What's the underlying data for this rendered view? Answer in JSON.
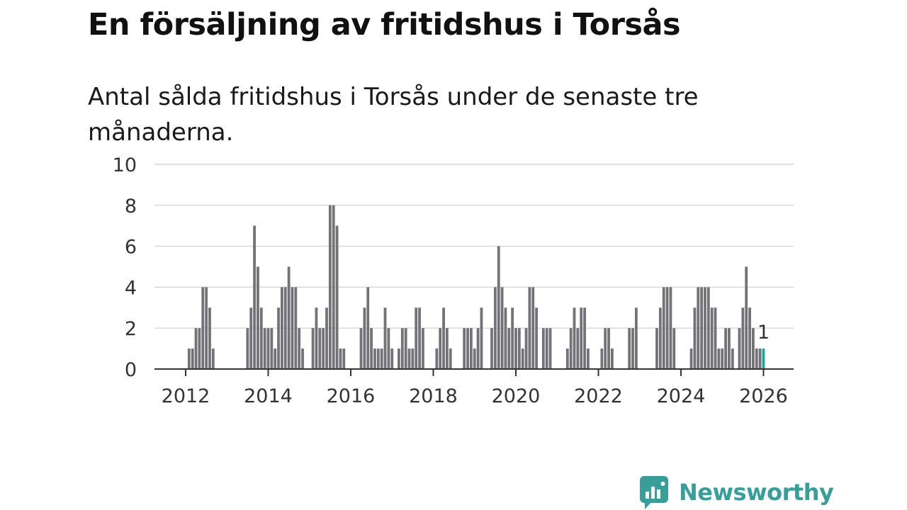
{
  "title": "En försäljning av fritidshus i Torsås",
  "subtitle": "Antal sålda fritidshus i Torsås under de senaste tre månaderna.",
  "brand": {
    "name": "Newsworthy",
    "color": "#3a9e98"
  },
  "colors": {
    "bar": "#737277",
    "highlight": "#1aa6a0",
    "grid": "#d9d9d9",
    "axis": "#333333"
  },
  "chart_data": {
    "type": "bar",
    "x_start": "2012-01",
    "x_unit": "month",
    "ylim": [
      0,
      10
    ],
    "yticks": [
      0,
      2,
      4,
      6,
      8,
      10
    ],
    "xticks": [
      "2012",
      "2014",
      "2016",
      "2018",
      "2020",
      "2022",
      "2024",
      "2026"
    ],
    "grid": true,
    "values": [
      0,
      1,
      1,
      2,
      2,
      4,
      4,
      3,
      1,
      0,
      0,
      0,
      0,
      0,
      0,
      0,
      0,
      0,
      2,
      3,
      7,
      5,
      3,
      2,
      2,
      2,
      1,
      3,
      4,
      4,
      5,
      4,
      4,
      2,
      1,
      0,
      0,
      2,
      3,
      2,
      2,
      3,
      8,
      8,
      7,
      1,
      1,
      0,
      0,
      0,
      0,
      2,
      3,
      4,
      2,
      1,
      1,
      1,
      3,
      2,
      1,
      0,
      1,
      2,
      2,
      1,
      1,
      3,
      3,
      2,
      0,
      0,
      0,
      1,
      2,
      3,
      2,
      1,
      0,
      0,
      0,
      2,
      2,
      2,
      1,
      2,
      3,
      0,
      0,
      2,
      4,
      6,
      4,
      3,
      2,
      3,
      2,
      2,
      1,
      2,
      4,
      4,
      3,
      0,
      2,
      2,
      2,
      0,
      0,
      0,
      0,
      1,
      2,
      3,
      2,
      3,
      3,
      1,
      0,
      0,
      0,
      1,
      2,
      2,
      1,
      0,
      0,
      0,
      0,
      2,
      2,
      3,
      0,
      0,
      0,
      0,
      0,
      2,
      3,
      4,
      4,
      4,
      2,
      0,
      0,
      0,
      0,
      1,
      3,
      4,
      4,
      4,
      4,
      3,
      3,
      1,
      1,
      2,
      2,
      1,
      0,
      2,
      3,
      5,
      3,
      2,
      1,
      1,
      1
    ],
    "highlight_index": 168,
    "highlight_label": "1"
  }
}
